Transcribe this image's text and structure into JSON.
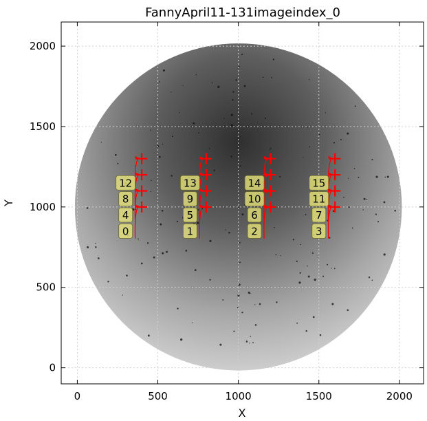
{
  "chart_data": {
    "type": "scatter",
    "title": "FannyApril11-131imageindex_0",
    "xlabel": "X",
    "ylabel": "Y",
    "xlim": [
      -100,
      2150
    ],
    "ylim": [
      2150,
      -100
    ],
    "y_inverted": true,
    "grid": true,
    "xticks": [
      0,
      500,
      1000,
      1500,
      2000
    ],
    "yticks": [
      0,
      500,
      1000,
      1500,
      2000
    ],
    "image": {
      "description": "circular detector image",
      "center": [
        1000,
        1000
      ],
      "radius": 1015
    },
    "markers": {
      "symbol": "+",
      "color": "#ff0000",
      "points": [
        {
          "x": 400,
          "y": 1000
        },
        {
          "x": 400,
          "y": 1100
        },
        {
          "x": 400,
          "y": 1200
        },
        {
          "x": 400,
          "y": 1300
        },
        {
          "x": 800,
          "y": 1000
        },
        {
          "x": 800,
          "y": 1100
        },
        {
          "x": 800,
          "y": 1200
        },
        {
          "x": 800,
          "y": 1300
        },
        {
          "x": 1200,
          "y": 1000
        },
        {
          "x": 1200,
          "y": 1100
        },
        {
          "x": 1200,
          "y": 1200
        },
        {
          "x": 1200,
          "y": 1300
        },
        {
          "x": 1600,
          "y": 1000
        },
        {
          "x": 1600,
          "y": 1100
        },
        {
          "x": 1600,
          "y": 1200
        },
        {
          "x": 1600,
          "y": 1300
        }
      ]
    },
    "annotations": [
      {
        "label": "0",
        "x": 300,
        "y": 850,
        "target": [
          400,
          1000
        ]
      },
      {
        "label": "4",
        "x": 300,
        "y": 950,
        "target": [
          400,
          1100
        ]
      },
      {
        "label": "8",
        "x": 300,
        "y": 1050,
        "target": [
          400,
          1200
        ]
      },
      {
        "label": "12",
        "x": 300,
        "y": 1150,
        "target": [
          400,
          1300
        ]
      },
      {
        "label": "1",
        "x": 700,
        "y": 850,
        "target": [
          800,
          1000
        ]
      },
      {
        "label": "5",
        "x": 700,
        "y": 950,
        "target": [
          800,
          1100
        ]
      },
      {
        "label": "9",
        "x": 700,
        "y": 1050,
        "target": [
          800,
          1200
        ]
      },
      {
        "label": "13",
        "x": 700,
        "y": 1150,
        "target": [
          800,
          1300
        ]
      },
      {
        "label": "2",
        "x": 1100,
        "y": 850,
        "target": [
          1200,
          1000
        ]
      },
      {
        "label": "6",
        "x": 1100,
        "y": 950,
        "target": [
          1200,
          1100
        ]
      },
      {
        "label": "10",
        "x": 1100,
        "y": 1050,
        "target": [
          1200,
          1200
        ]
      },
      {
        "label": "14",
        "x": 1100,
        "y": 1150,
        "target": [
          1200,
          1300
        ]
      },
      {
        "label": "3",
        "x": 1500,
        "y": 850,
        "target": [
          1600,
          1000
        ]
      },
      {
        "label": "7",
        "x": 1500,
        "y": 950,
        "target": [
          1600,
          1100
        ]
      },
      {
        "label": "11",
        "x": 1500,
        "y": 1050,
        "target": [
          1600,
          1200
        ]
      },
      {
        "label": "15",
        "x": 1500,
        "y": 1150,
        "target": [
          1600,
          1300
        ]
      }
    ]
  }
}
